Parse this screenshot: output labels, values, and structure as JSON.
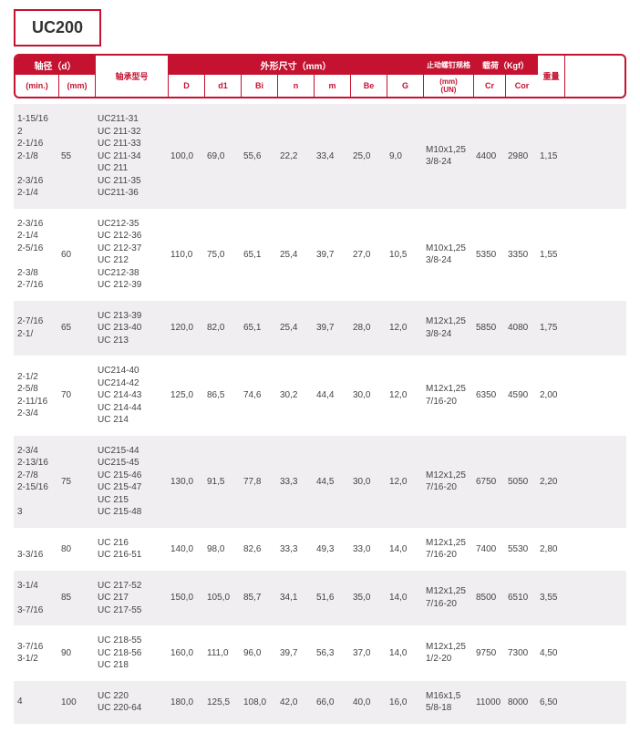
{
  "title": "UC200",
  "header": {
    "shaft_dia": "轴径（d）",
    "min": "(min.)",
    "mm": "(mm)",
    "model": "轴承型号",
    "dims": "外形尺寸（mm）",
    "cols": [
      "D",
      "d1",
      "Bi",
      "n",
      "m",
      "Be",
      "G"
    ],
    "screw": "止动螺钉规格",
    "screw_sub": "(mm)\n(UN)",
    "load": "载荷（Kgf）",
    "cr": "Cr",
    "cor": "Cor",
    "weight": "重量"
  },
  "rows": [
    {
      "min": "1-15/16\n2\n2-1/16\n2-1/8\n\n2-3/16\n2-1/4",
      "mm": "55",
      "models": "UC211-31\nUC 211-32\nUC 211-33\nUC 211-34\nUC 211\nUC 211-35\nUC211-36",
      "D": "100,0",
      "d1": "69,0",
      "Bi": "55,6",
      "n": "22,2",
      "m": "33,4",
      "Be": "25,0",
      "G": "9,0",
      "screw": "M10x1,25\n3/8-24",
      "Cr": "4400",
      "Cor": "2980",
      "wt": "1,15"
    },
    {
      "min": "2-3/16\n2-1/4\n2-5/16\n\n2-3/8\n2-7/16",
      "mm": "60",
      "models": "UC212-35\nUC 212-36\nUC 212-37\nUC 212\nUC212-38\nUC 212-39",
      "D": "110,0",
      "d1": "75,0",
      "Bi": "65,1",
      "n": "25,4",
      "m": "39,7",
      "Be": "27,0",
      "G": "10,5",
      "screw": "M10x1,25\n3/8-24",
      "Cr": "5350",
      "Cor": "3350",
      "wt": "1,55"
    },
    {
      "min": "2-7/16\n2-1/",
      "mm": "65",
      "models": "UC 213-39\nUC 213-40\nUC 213",
      "D": "120,0",
      "d1": "82,0",
      "Bi": "65,1",
      "n": "25,4",
      "m": "39,7",
      "Be": "28,0",
      "G": "12,0",
      "screw": "M12x1,25\n3/8-24",
      "Cr": "5850",
      "Cor": "4080",
      "wt": "1,75"
    },
    {
      "min": "2-1/2\n2-5/8\n2-11/16\n2-3/4",
      "mm": "70",
      "models": "UC214-40\nUC214-42\nUC 214-43\nUC 214-44\nUC 214",
      "D": "125,0",
      "d1": "86,5",
      "Bi": "74,6",
      "n": "30,2",
      "m": "44,4",
      "Be": "30,0",
      "G": "12,0",
      "screw": "M12x1,25\n7/16-20",
      "Cr": "6350",
      "Cor": "4590",
      "wt": "2,00"
    },
    {
      "min": "2-3/4\n2-13/16\n2-7/8\n2-15/16\n\n3",
      "mm": "75",
      "models": "UC215-44\nUC215-45\nUC 215-46\nUC 215-47\nUC 215\nUC 215-48",
      "D": "130,0",
      "d1": "91,5",
      "Bi": "77,8",
      "n": "33,3",
      "m": "44,5",
      "Be": "30,0",
      "G": "12,0",
      "screw": "M12x1,25\n7/16-20",
      "Cr": "6750",
      "Cor": "5050",
      "wt": "2,20"
    },
    {
      "min": "\n3-3/16",
      "mm": "80",
      "models": "UC 216\nUC 216-51",
      "D": "140,0",
      "d1": "98,0",
      "Bi": "82,6",
      "n": "33,3",
      "m": "49,3",
      "Be": "33,0",
      "G": "14,0",
      "screw": "M12x1,25\n7/16-20",
      "Cr": "7400",
      "Cor": "5530",
      "wt": "2,80"
    },
    {
      "min": "3-1/4\n\n3-7/16",
      "mm": "85",
      "models": "UC 217-52\nUC 217\nUC 217-55",
      "D": "150,0",
      "d1": "105,0",
      "Bi": "85,7",
      "n": "34,1",
      "m": "51,6",
      "Be": "35,0",
      "G": "14,0",
      "screw": "M12x1,25\n7/16-20",
      "Cr": "8500",
      "Cor": "6510",
      "wt": "3,55"
    },
    {
      "min": "3-7/16\n3-1/2",
      "mm": "90",
      "models": "UC 218-55\nUC 218-56\nUC 218",
      "D": "160,0",
      "d1": "111,0",
      "Bi": "96,0",
      "n": "39,7",
      "m": "56,3",
      "Be": "37,0",
      "G": "14,0",
      "screw": "M12x1,25\n1/2-20",
      "Cr": "9750",
      "Cor": "7300",
      "wt": "4,50"
    },
    {
      "min": "4",
      "mm": "100",
      "models": "UC 220\nUC 220-64",
      "D": "180,0",
      "d1": "125,5",
      "Bi": "108,0",
      "n": "42,0",
      "m": "66,0",
      "Be": "40,0",
      "G": "16,0",
      "screw": "M16x1,5\n5/8-18",
      "Cr": "11000",
      "Cor": "8000",
      "wt": "6,50"
    }
  ]
}
